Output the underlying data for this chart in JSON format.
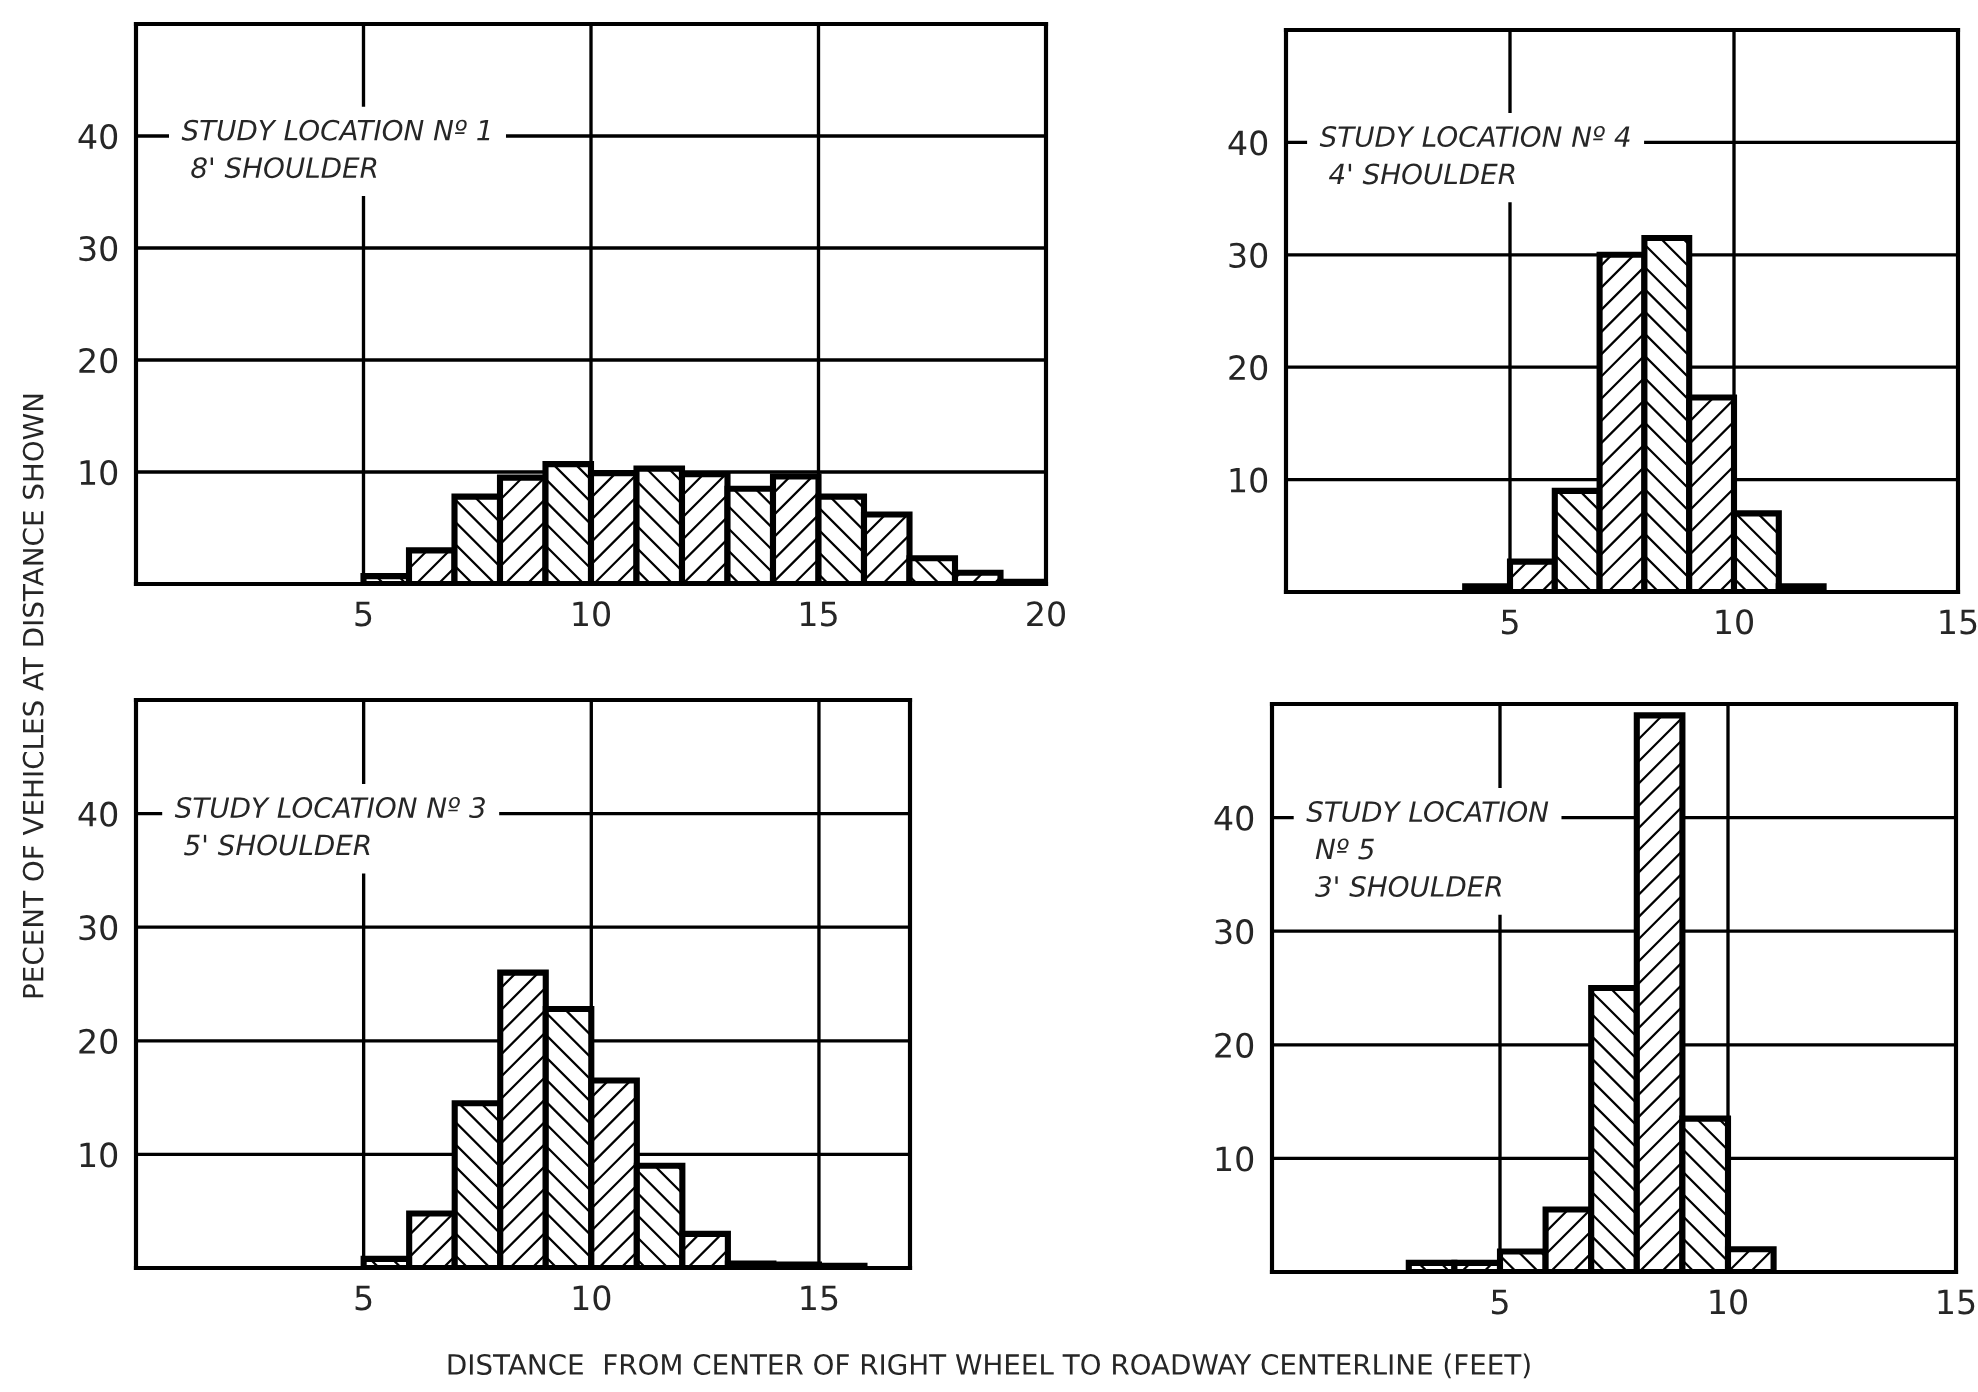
{
  "chart_data": [
    {
      "type": "histogram",
      "ylabel": "PECENT OF VEHICLES AT DISTANCE SHOWN",
      "xlabel": "DISTANCE  FROM CENTER OF RIGHT WHEEL TO ROADWAY CENTERLINE (FEET)",
      "annotations": [
        "STUDY LOCATION Nº 1\n 8' SHOULDER"
      ],
      "color": "#000000",
      "bins": [
        5,
        6,
        7,
        8,
        9,
        10,
        11,
        12,
        13,
        14,
        15,
        16,
        17,
        18,
        19,
        20
      ],
      "values": [
        0.7,
        3,
        7.8,
        9.5,
        10.7,
        9.9,
        10.3,
        9.8,
        8.5,
        9.6,
        7.8,
        6.2,
        2.3,
        1,
        0.2
      ],
      "xlim": [
        0,
        20
      ],
      "xticks": [
        5,
        10,
        15,
        20
      ],
      "ylim": [
        0,
        50
      ],
      "yticks": [
        10,
        20,
        30,
        40
      ],
      "grid": true
    },
    {
      "type": "histogram",
      "annotations": [
        "STUDY LOCATION Nº 4\n 4' SHOULDER"
      ],
      "color": "#000000",
      "bins": [
        4,
        5,
        6,
        7,
        8,
        9,
        10,
        11,
        12
      ],
      "values": [
        0.5,
        2.7,
        9,
        30,
        31.5,
        17.3,
        7,
        0.5
      ],
      "xlim": [
        0,
        15
      ],
      "xticks": [
        5,
        10,
        15
      ],
      "ylim": [
        0,
        50
      ],
      "yticks": [
        10,
        20,
        30,
        40
      ],
      "grid": true
    },
    {
      "type": "histogram",
      "annotations": [
        "STUDY LOCATION Nº 3\n 5' SHOULDER"
      ],
      "color": "#000000",
      "bins": [
        5,
        6,
        7,
        8,
        9,
        10,
        11,
        12,
        13,
        14,
        15,
        16
      ],
      "values": [
        0.8,
        4.8,
        14.5,
        26,
        22.8,
        16.5,
        9,
        3,
        0.4,
        0.3,
        0.2
      ],
      "xlim": [
        0,
        17
      ],
      "xticks": [
        5,
        10,
        15
      ],
      "ylim": [
        0,
        50
      ],
      "yticks": [
        10,
        20,
        30,
        40
      ],
      "grid": true
    },
    {
      "type": "histogram",
      "annotations": [
        "STUDY LOCATION\n Nº 5\n 3' SHOULDER"
      ],
      "color": "#000000",
      "bins": [
        3,
        4,
        5,
        6,
        7,
        8,
        9,
        10,
        11
      ],
      "values": [
        0.8,
        0.8,
        1.8,
        5.5,
        25,
        49,
        13.5,
        2
      ],
      "xlim": [
        0,
        15
      ],
      "xticks": [
        5,
        10,
        15
      ],
      "ylim": [
        0,
        50
      ],
      "yticks": [
        10,
        20,
        30,
        40
      ],
      "grid": true
    }
  ]
}
